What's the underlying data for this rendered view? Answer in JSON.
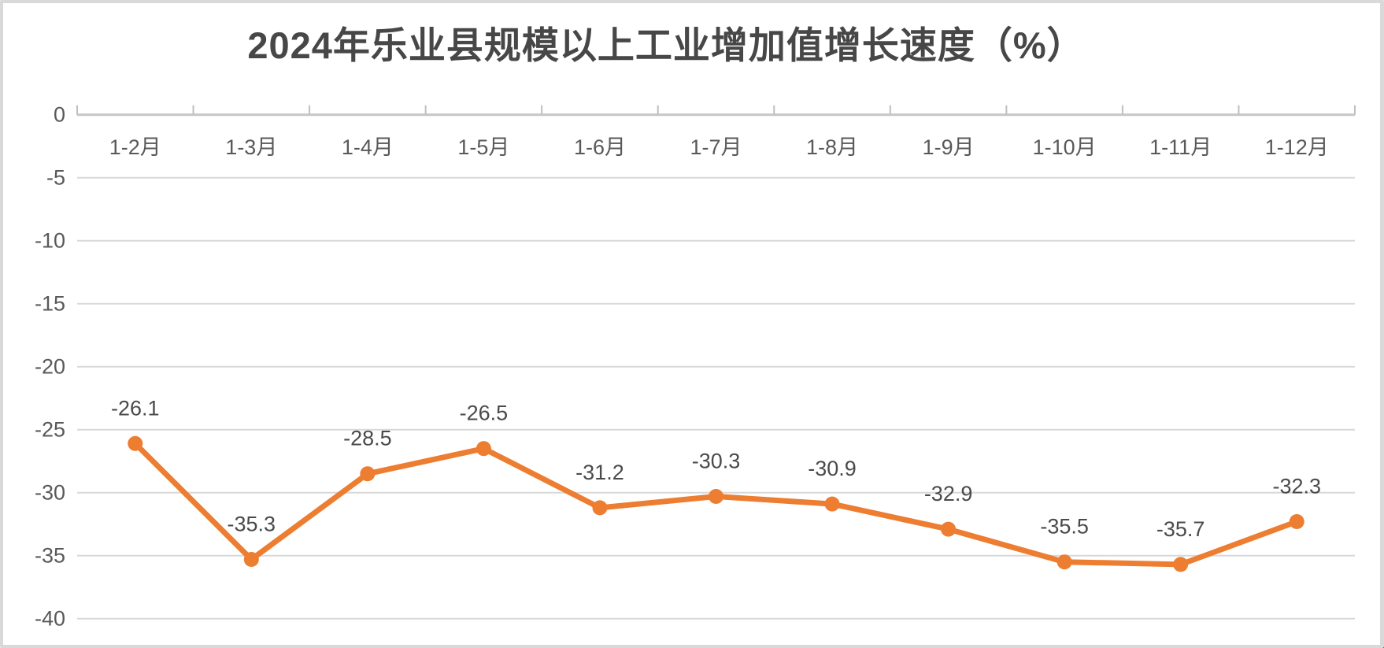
{
  "chart_data": {
    "type": "line",
    "title": "2024年乐业县规模以上工业增加值增长速度（%）",
    "categories": [
      "1-2月",
      "1-3月",
      "1-4月",
      "1-5月",
      "1-6月",
      "1-7月",
      "1-8月",
      "1-9月",
      "1-10月",
      "1-11月",
      "1-12月"
    ],
    "series": [
      {
        "values": [
          -26.1,
          -35.3,
          -28.5,
          -26.5,
          -31.2,
          -30.3,
          -30.9,
          -32.9,
          -35.5,
          -35.7,
          -32.3
        ],
        "color": "#ED7D31"
      }
    ],
    "data_labels": [
      "-26.1",
      "-35.3",
      "-28.5",
      "-26.5",
      "-31.2",
      "-30.3",
      "-30.9",
      "-32.9",
      "-35.5",
      "-35.7",
      "-32.3"
    ],
    "xlabel": "",
    "ylabel": "",
    "y_axis": {
      "min": -40,
      "max": 0,
      "step": 5,
      "tick_labels": [
        "0",
        "-5",
        "-10",
        "-15",
        "-20",
        "-25",
        "-30",
        "-35",
        "-40"
      ]
    },
    "grid": true,
    "legend_position": "none",
    "marker": "circle"
  },
  "style": {
    "gridline_color": "#d9d9d9",
    "axis_line_color": "#c6c6c6",
    "tick_color": "#bfbfbf",
    "tick_label_color": "#595959",
    "data_label_color": "#4a4a4a",
    "title_color": "#474747",
    "background": "#ffffff",
    "frame_color": "#d9d9d9"
  }
}
